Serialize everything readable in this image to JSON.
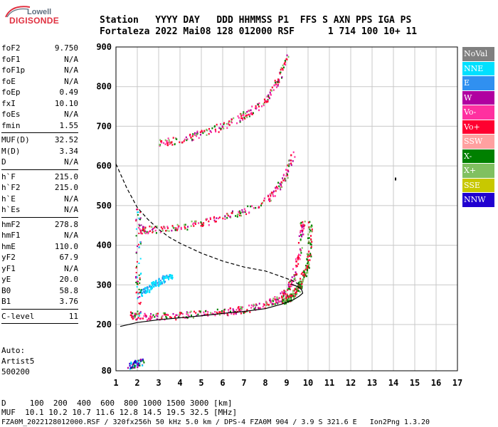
{
  "logo": {
    "line1": "Lowell",
    "line2": "DIGISONDE"
  },
  "header": {
    "line1": "Station   YYYY DAY   DDD HHMMSS P1  FFS S AXN PPS IGA PS",
    "line2": "Fortaleza 2022 Mai08 128 012000 RSF      1 714 100 10+ 11"
  },
  "params_group1": [
    {
      "label": "foF2",
      "value": "9.750"
    },
    {
      "label": "foF1",
      "value": "N/A"
    },
    {
      "label": "foF1p",
      "value": "N/A"
    },
    {
      "label": "foE",
      "value": "N/A"
    },
    {
      "label": "foEp",
      "value": "0.49"
    },
    {
      "label": "fxI",
      "value": "10.10"
    },
    {
      "label": "foEs",
      "value": "N/A"
    },
    {
      "label": "fmin",
      "value": "1.55"
    }
  ],
  "params_group2": [
    {
      "label": "MUF(D)",
      "value": "32.52"
    },
    {
      "label": "M(D)",
      "value": "3.34"
    },
    {
      "label": "D",
      "value": "N/A"
    }
  ],
  "params_group3": [
    {
      "label": "h`F",
      "value": "215.0"
    },
    {
      "label": "h`F2",
      "value": "215.0"
    },
    {
      "label": "h`E",
      "value": "N/A"
    },
    {
      "label": "h`Es",
      "value": "N/A"
    }
  ],
  "params_group4": [
    {
      "label": "hmF2",
      "value": "278.8"
    },
    {
      "label": "hmF1",
      "value": "N/A"
    },
    {
      "label": "hmE",
      "value": "110.0"
    },
    {
      "label": "yF2",
      "value": "67.9"
    },
    {
      "label": "yF1",
      "value": "N/A"
    },
    {
      "label": "yE",
      "value": "20.0"
    },
    {
      "label": "B0",
      "value": "58.8"
    },
    {
      "label": "B1",
      "value": "3.76"
    }
  ],
  "params_group5": [
    {
      "label": "C-level",
      "value": "11"
    }
  ],
  "auto": {
    "line1": "Auto:",
    "line2": "Artist5",
    "line3": "500200"
  },
  "footer": {
    "line1": "D     100  200  400  600  800 1000 1500 3000 [km]",
    "line2": "MUF  10.1 10.2 10.7 11.6 12.8 14.5 19.5 32.5 [MHz]",
    "line3": "FZA0M_2022128012000.RSF / 320fx256h 50 kHz 5.0 km / DPS-4 FZA0M 904 / 3.9 S 321.6 E   Ion2Png 1.3.20"
  },
  "legend": [
    {
      "label": "NoVal",
      "color": "#808080"
    },
    {
      "label": "NNE",
      "color": "#00e0ff"
    },
    {
      "label": "E",
      "color": "#3090f0"
    },
    {
      "label": "W",
      "color": "#b000a0"
    },
    {
      "label": "Vo-",
      "color": "#ff30a0"
    },
    {
      "label": "Vo+",
      "color": "#ff0030"
    },
    {
      "label": "SSW",
      "color": "#ffa0a0"
    },
    {
      "label": "X-",
      "color": "#008000"
    },
    {
      "label": "X+",
      "color": "#80c060"
    },
    {
      "label": "SSE",
      "color": "#c8c800"
    },
    {
      "label": "NNW",
      "color": "#2000d0"
    }
  ],
  "chart_data": {
    "type": "scatter",
    "xlim": [
      1,
      17
    ],
    "ylim": [
      80,
      900
    ],
    "x_ticks": [
      1,
      2,
      3,
      4,
      5,
      6,
      7,
      8,
      9,
      10,
      11,
      12,
      13,
      14,
      15,
      16,
      17
    ],
    "y_ticks": [
      80,
      200,
      300,
      400,
      500,
      600,
      700,
      800,
      900
    ],
    "grid": true,
    "legend_position": "right",
    "profile_curve": {
      "x": [
        1.2,
        2.0,
        3.0,
        4.0,
        5.0,
        6.0,
        7.0,
        8.0,
        8.8,
        9.3,
        9.6,
        9.75,
        9.7,
        9.5,
        9.2
      ],
      "y": [
        195,
        205,
        212,
        217,
        222,
        228,
        233,
        240,
        252,
        262,
        272,
        279,
        288,
        296,
        302
      ]
    },
    "dashed_curve": {
      "x": [
        1.0,
        1.5,
        2.0,
        2.5,
        3.0,
        3.5,
        4.0,
        5.0,
        6.0,
        7.0,
        8.0,
        8.8,
        9.3,
        9.6
      ],
      "y": [
        605,
        545,
        495,
        465,
        440,
        420,
        405,
        380,
        360,
        345,
        335,
        320,
        310,
        300
      ]
    },
    "traces": [
      {
        "name": "F2 1st hop o-mode",
        "x": [
          1.7,
          2.0,
          3.0,
          4.0,
          5.0,
          6.0,
          7.0,
          8.0,
          8.6,
          9.0,
          9.3,
          9.6,
          9.75
        ],
        "y": [
          225,
          222,
          222,
          224,
          228,
          232,
          240,
          252,
          265,
          285,
          320,
          390,
          470
        ]
      },
      {
        "name": "F2 1st hop x-mode",
        "x": [
          8.8,
          9.2,
          9.6,
          10.0,
          10.1
        ],
        "y": [
          262,
          272,
          300,
          360,
          460
        ]
      },
      {
        "name": "F2 2nd hop",
        "x": [
          2.0,
          3.0,
          4.0,
          5.0,
          6.0,
          7.0,
          8.0,
          8.6,
          9.0,
          9.3
        ],
        "y": [
          440,
          442,
          448,
          458,
          472,
          488,
          515,
          545,
          585,
          640
        ]
      },
      {
        "name": "F2 3rd hop",
        "x": [
          3.0,
          4.0,
          5.0,
          6.0,
          7.0,
          8.0,
          8.6,
          9.0
        ],
        "y": [
          658,
          668,
          682,
          702,
          728,
          768,
          820,
          880
        ]
      },
      {
        "name": "Es echoes",
        "x": [
          2.1,
          2.4,
          2.7,
          3.0,
          3.3,
          3.6
        ],
        "y": [
          280,
          290,
          300,
          310,
          318,
          325
        ]
      },
      {
        "name": "low echoes",
        "x": [
          1.6,
          1.8,
          2.0,
          2.2
        ],
        "y": [
          95,
          98,
          100,
          104
        ]
      }
    ],
    "isolated_points": [
      {
        "x": 14.1,
        "y": 567
      }
    ]
  }
}
